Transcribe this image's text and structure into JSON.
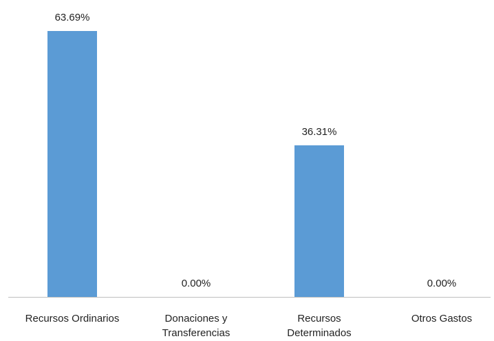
{
  "chart_data": {
    "type": "bar",
    "categories": [
      [
        "Recursos Ordinarios"
      ],
      [
        "Donaciones y",
        "Transferencias"
      ],
      [
        "Recursos",
        "Determinados"
      ],
      [
        "Otros Gastos"
      ]
    ],
    "values": [
      63.69,
      0.0,
      36.31,
      0.0
    ],
    "data_labels": [
      "63.69%",
      "0.00%",
      "36.31%",
      "0.00%"
    ],
    "title": "",
    "xlabel": "",
    "ylabel": "",
    "ylim": [
      0,
      63.69
    ],
    "grid": false,
    "legend": "none",
    "bar_color": "#5b9bd5"
  }
}
